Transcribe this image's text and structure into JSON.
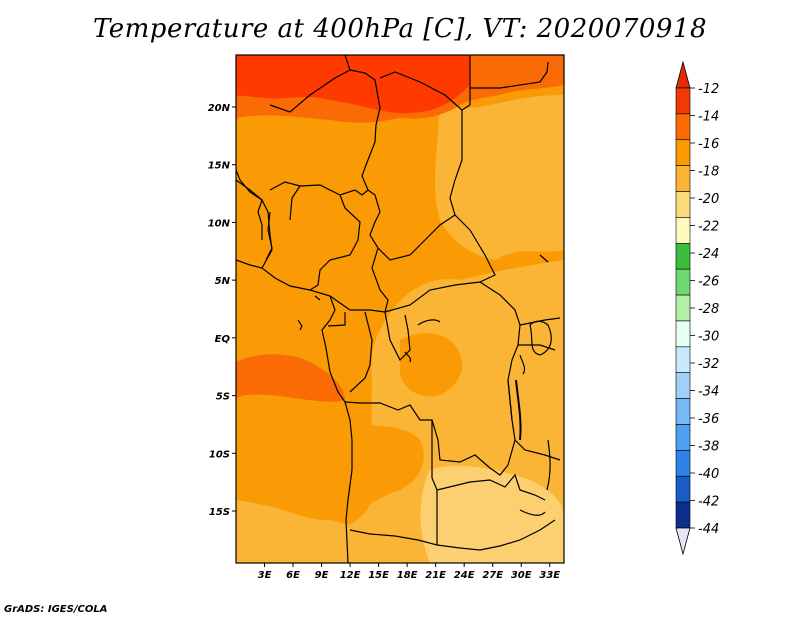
{
  "title": "Temperature at 400hPa [C], VT: 2020070918",
  "credit": "GrADS: IGES/COLA",
  "map": {
    "variable": "Temperature",
    "level": "400hPa",
    "units": "C",
    "valid_time": "2020070918",
    "lon_range": [
      0,
      34.5
    ],
    "lat_range": [
      -19.5,
      24.5
    ],
    "lat_ticks": [
      {
        "value": 20,
        "label": "20N"
      },
      {
        "value": 15,
        "label": "15N"
      },
      {
        "value": 10,
        "label": "10N"
      },
      {
        "value": 5,
        "label": "5N"
      },
      {
        "value": 0,
        "label": "EQ"
      },
      {
        "value": -5,
        "label": "5S"
      },
      {
        "value": -10,
        "label": "10S"
      },
      {
        "value": -15,
        "label": "15S"
      }
    ],
    "lon_ticks": [
      {
        "value": 3,
        "label": "3E"
      },
      {
        "value": 6,
        "label": "6E"
      },
      {
        "value": 9,
        "label": "9E"
      },
      {
        "value": 12,
        "label": "12E"
      },
      {
        "value": 15,
        "label": "15E"
      },
      {
        "value": 18,
        "label": "18E"
      },
      {
        "value": 21,
        "label": "21E"
      },
      {
        "value": 24,
        "label": "24E"
      },
      {
        "value": 27,
        "label": "27E"
      },
      {
        "value": 30,
        "label": "30E"
      },
      {
        "value": 33,
        "label": "33E"
      }
    ]
  },
  "colorbar": {
    "bins": [
      {
        "color": "#f03a05"
      },
      {
        "color": "#fa6b05"
      },
      {
        "color": "#fa9b05"
      },
      {
        "color": "#fbb536"
      },
      {
        "color": "#fcdb7a"
      },
      {
        "color": "#fffac0"
      },
      {
        "color": "#3cbe3c"
      },
      {
        "color": "#70d870"
      },
      {
        "color": "#b2f0a8"
      },
      {
        "color": "#e6fff5"
      },
      {
        "color": "#c8e8fb"
      },
      {
        "color": "#a0d0f8"
      },
      {
        "color": "#78b8f5"
      },
      {
        "color": "#50a0f0"
      },
      {
        "color": "#2f82e6"
      },
      {
        "color": "#1a5cc8"
      },
      {
        "color": "#0d2f8c"
      }
    ],
    "top_color": "#e62c05",
    "bottom_color": "#e6e6fa",
    "labels": [
      "-12",
      "-14",
      "-16",
      "-18",
      "-20",
      "-22",
      "-24",
      "-26",
      "-28",
      "-30",
      "-32",
      "-34",
      "-36",
      "-38",
      "-40",
      "-42",
      "-44"
    ]
  },
  "fields": {
    "c_m13": "#ff3a00",
    "c_m14": "#fa6b05",
    "c_m15": "#fa9b05",
    "c_m16": "#fbb536",
    "c_m17": "#fcd070",
    "border": "#000000"
  }
}
